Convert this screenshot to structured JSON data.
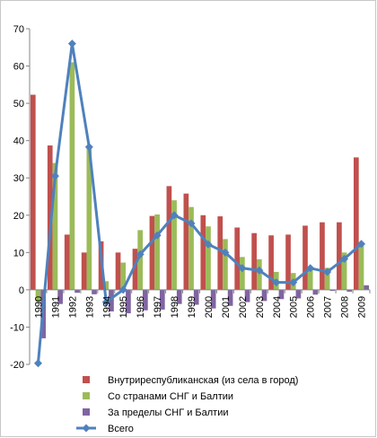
{
  "chart_data": {
    "type": "bar",
    "categories": [
      "1990",
      "1991",
      "1992",
      "1993",
      "1994",
      "1995",
      "1996",
      "1997",
      "1998",
      "1999",
      "2000",
      "2001",
      "2002",
      "2003",
      "2004",
      "2005",
      "2006",
      "2007",
      "2008",
      "2009"
    ],
    "ylim": [
      -20,
      70
    ],
    "yticks": [
      -20,
      -10,
      0,
      10,
      20,
      30,
      40,
      50,
      60,
      70
    ],
    "grid": false,
    "legend_position": "bottom",
    "series": [
      {
        "name": "Внутриреспубликанская (из села в город)",
        "type": "bar",
        "color": "#c0504d",
        "values": [
          52.3,
          38.7,
          14.8,
          10.0,
          13.0,
          10.0,
          11.0,
          19.8,
          27.8,
          25.8,
          20.0,
          19.7,
          16.7,
          15.2,
          14.6,
          14.8,
          17.2,
          18.1,
          18.1,
          35.5
        ]
      },
      {
        "name": "Со странами СНГ и Балтии",
        "type": "bar",
        "color": "#9bbb59",
        "values": [
          -3.2,
          34.0,
          61.0,
          38.5,
          2.3,
          7.3,
          16.0,
          20.2,
          24.0,
          22.2,
          17.0,
          13.6,
          8.8,
          8.2,
          4.8,
          4.5,
          5.8,
          5.9,
          10.0,
          12.0
        ]
      },
      {
        "name": "За пределы СНГ и Балтии",
        "type": "bar",
        "color": "#8064a2",
        "values": [
          -13.0,
          -3.8,
          -0.8,
          -1.2,
          -5.8,
          -6.3,
          -5.5,
          -5.3,
          -3.8,
          -4.0,
          -5.0,
          -4.3,
          -3.3,
          -3.0,
          -2.5,
          -2.3,
          -1.3,
          -0.3,
          -0.5,
          1.2
        ]
      },
      {
        "name": "Всего",
        "type": "line",
        "color": "#4f81bd",
        "values": [
          -19.7,
          30.5,
          66.0,
          38.3,
          -3.3,
          0.0,
          9.5,
          14.6,
          20.0,
          17.8,
          12.2,
          10.0,
          5.8,
          5.2,
          2.0,
          2.0,
          5.8,
          4.8,
          8.3,
          12.3
        ]
      }
    ]
  }
}
